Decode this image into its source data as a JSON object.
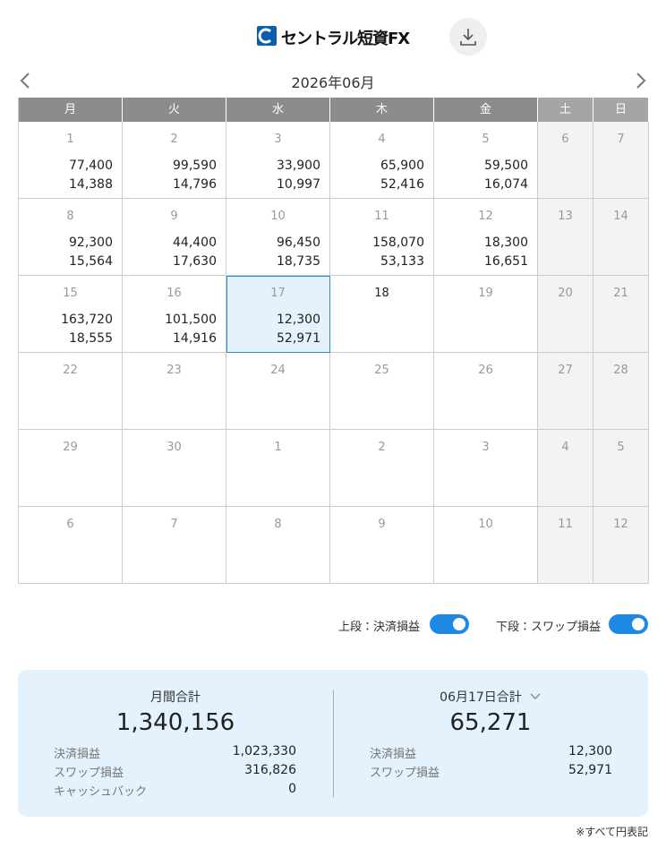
{
  "header": {
    "logo": "セントラル短資FX"
  },
  "calendar": {
    "month": "2026年06月",
    "weekdays": [
      "月",
      "火",
      "水",
      "木",
      "金",
      "土",
      "日"
    ],
    "weeks": [
      [
        {
          "day": 1,
          "top": "77,400",
          "bottom": "14,388"
        },
        {
          "day": 2,
          "top": "99,590",
          "bottom": "14,796"
        },
        {
          "day": 3,
          "top": "33,900",
          "bottom": "10,997"
        },
        {
          "day": 4,
          "top": "65,900",
          "bottom": "52,416"
        },
        {
          "day": 5,
          "top": "59,500",
          "bottom": "16,074"
        },
        {
          "day": 6
        },
        {
          "day": 7
        }
      ],
      [
        {
          "day": 8,
          "top": "92,300",
          "bottom": "15,564"
        },
        {
          "day": 9,
          "top": "44,400",
          "bottom": "17,630"
        },
        {
          "day": 10,
          "top": "96,450",
          "bottom": "18,735"
        },
        {
          "day": 11,
          "top": "158,070",
          "bottom": "53,133"
        },
        {
          "day": 12,
          "top": "18,300",
          "bottom": "16,651"
        },
        {
          "day": 13
        },
        {
          "day": 14
        }
      ],
      [
        {
          "day": 15,
          "top": "163,720",
          "bottom": "18,555"
        },
        {
          "day": 16,
          "top": "101,500",
          "bottom": "14,916"
        },
        {
          "day": 17,
          "top": "12,300",
          "bottom": "52,971",
          "selected": true
        },
        {
          "day": 18,
          "today": true
        },
        {
          "day": 19
        },
        {
          "day": 20
        },
        {
          "day": 21
        }
      ],
      [
        {
          "day": 22
        },
        {
          "day": 23
        },
        {
          "day": 24
        },
        {
          "day": 25
        },
        {
          "day": 26
        },
        {
          "day": 27
        },
        {
          "day": 28
        }
      ],
      [
        {
          "day": 29
        },
        {
          "day": 30
        },
        {
          "day": 1
        },
        {
          "day": 2
        },
        {
          "day": 3
        },
        {
          "day": 4
        },
        {
          "day": 5
        }
      ],
      [
        {
          "day": 6
        },
        {
          "day": 7
        },
        {
          "day": 8
        },
        {
          "day": 9
        },
        {
          "day": 10
        },
        {
          "day": 11
        },
        {
          "day": 12
        }
      ]
    ]
  },
  "toggles": [
    {
      "label": "上段：決済損益",
      "on": true
    },
    {
      "label": "下段：スワップ損益",
      "on": true
    }
  ],
  "summary": {
    "monthly": {
      "title": "月間合計",
      "total": "1,340,156",
      "rows": [
        [
          "決済損益",
          "1,023,330"
        ],
        [
          "スワップ損益",
          "316,826"
        ],
        [
          "キャッシュバック",
          "0"
        ]
      ]
    },
    "daily": {
      "title": "06月17日合計",
      "total": "65,271",
      "rows": [
        [
          "決済損益",
          "12,300"
        ],
        [
          "スワップ損益",
          "52,971"
        ]
      ]
    }
  },
  "footnote": "※すべて円表記"
}
